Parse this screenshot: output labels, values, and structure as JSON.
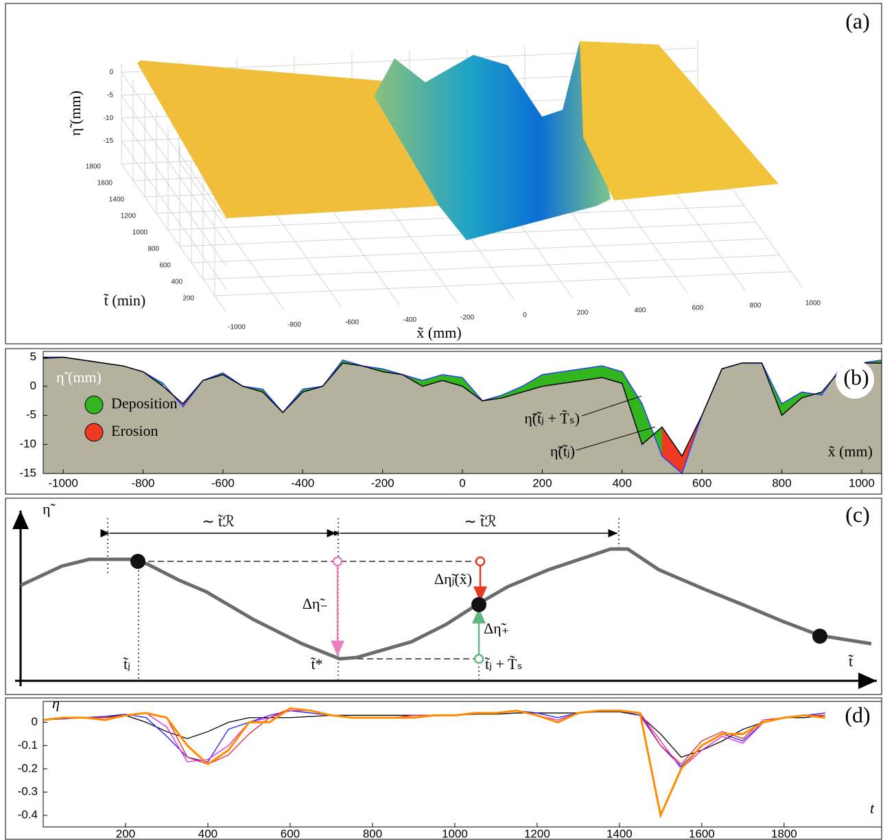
{
  "chart_data": [
    {
      "type": "surface3d",
      "panel_label": "(a)",
      "xlabel": "x̃ (mm)",
      "ylabel": "t̃ (min)",
      "zlabel": "η̃ (mm)",
      "xlim": [
        -1000,
        1000
      ],
      "ylim": [
        0,
        1800
      ],
      "zlim": [
        -20,
        2
      ],
      "xticks": [
        -1000,
        -800,
        -600,
        -400,
        -200,
        0,
        200,
        400,
        600,
        800,
        1000
      ],
      "yticks": [
        200,
        400,
        600,
        800,
        1000,
        1200,
        1400,
        1600,
        1800
      ],
      "zticks": [
        0,
        -5,
        -10,
        -15
      ]
    },
    {
      "type": "profile",
      "panel_label": "(b)",
      "xlabel": "x̃ (mm)",
      "ylabel": "η̃ (mm)",
      "xlim": [
        -1050,
        1050
      ],
      "ylim": [
        -15,
        6
      ],
      "xticks": [
        -1000,
        -800,
        -600,
        -400,
        -200,
        0,
        200,
        400,
        600,
        800,
        1000
      ],
      "yticks": [
        5,
        0,
        -5,
        -10,
        -15
      ],
      "x": [
        -1050,
        -1000,
        -950,
        -900,
        -850,
        -800,
        -750,
        -700,
        -650,
        -600,
        -550,
        -500,
        -450,
        -400,
        -350,
        -300,
        -250,
        -200,
        -150,
        -100,
        -50,
        0,
        50,
        100,
        150,
        200,
        250,
        300,
        350,
        400,
        450,
        500,
        550,
        600,
        650,
        700,
        750,
        800,
        850,
        900,
        950,
        1000,
        1050
      ],
      "series": [
        {
          "name": "η̃(t̃ⱼ)",
          "color": "#000000",
          "values": [
            4.8,
            5,
            4.5,
            4,
            3.5,
            2.5,
            0,
            -3,
            1,
            2,
            0,
            -1,
            -4.5,
            -1,
            0,
            4,
            3.5,
            2.5,
            2,
            0,
            1,
            0,
            -2.5,
            -2,
            -1,
            0,
            0.5,
            1,
            1.5,
            0.5,
            -10,
            -7,
            -12,
            -5,
            3,
            4,
            4,
            -5,
            -2,
            -1,
            3,
            4,
            4
          ]
        },
        {
          "name": "η̃(t̃ⱼ + T̃ₛ)",
          "color": "#1f3fff",
          "values": [
            5,
            5,
            4.5,
            4,
            3.5,
            2.5,
            0.5,
            -3.5,
            1,
            2.3,
            0,
            -0.5,
            -4.5,
            -0.5,
            0,
            4.5,
            3.5,
            3,
            2,
            1,
            2,
            1.5,
            -2.5,
            -1.5,
            0,
            2,
            2.5,
            3,
            3.5,
            2.5,
            -3,
            -12,
            -15,
            -5,
            3,
            4,
            4,
            -3,
            -1,
            -1.5,
            3.5,
            4,
            4.5
          ]
        }
      ],
      "legend": [
        {
          "label": "Deposition",
          "color": "#33b51f"
        },
        {
          "label": "Erosion",
          "color": "#ee3a22"
        }
      ],
      "fill_color": "#b5b19f"
    },
    {
      "type": "schematic",
      "panel_label": "(c)",
      "labels": {
        "eta": "η̃",
        "t": "t̃",
        "span_left": "∼ t̃ℛ",
        "span_right": "∼ t̃ℛ",
        "delta_minus": "Δη̃₋",
        "delta_plus": "Δη̃₊",
        "delta_j": "Δη̃ⱼ(x̃)",
        "t_j": "t̃ⱼ",
        "t_star": "t̃*",
        "t_j_Ts": "t̃ⱼ + T̃ₛ"
      }
    },
    {
      "type": "line",
      "panel_label": "(d)",
      "xlabel": "t",
      "ylabel": "η",
      "xlim": [
        0,
        2037
      ],
      "ylim": [
        -0.45,
        0.09
      ],
      "xticks": [
        200,
        400,
        600,
        800,
        1000,
        1200,
        1400,
        1600,
        1800
      ],
      "yticks": [
        0,
        -0.1,
        -0.2,
        -0.3,
        -0.4
      ],
      "x": [
        0,
        50,
        100,
        150,
        200,
        250,
        300,
        350,
        400,
        450,
        500,
        550,
        600,
        650,
        700,
        750,
        800,
        850,
        900,
        950,
        1000,
        1050,
        1100,
        1150,
        1200,
        1250,
        1300,
        1350,
        1400,
        1450,
        1500,
        1550,
        1600,
        1650,
        1700,
        1750,
        1800,
        1850,
        1900
      ],
      "series": [
        {
          "color": "#000000",
          "values": [
            0.01,
            0.015,
            0.02,
            0.025,
            0.03,
            0,
            -0.04,
            -0.07,
            -0.04,
            0,
            0.02,
            0.02,
            0.02,
            0.025,
            0.03,
            0.03,
            0.03,
            0.03,
            0.03,
            0.03,
            0.03,
            0.035,
            0.035,
            0.04,
            0.04,
            0.04,
            0.04,
            0.045,
            0.045,
            0.03,
            -0.05,
            -0.15,
            -0.12,
            -0.08,
            -0.03,
            0,
            0.02,
            0.02,
            0.03
          ]
        },
        {
          "color": "#1a1aff",
          "values": [
            0.01,
            0.015,
            0.02,
            0.025,
            0.035,
            0.02,
            -0.06,
            -0.15,
            -0.17,
            -0.03,
            0,
            0.03,
            0.05,
            0.04,
            0.03,
            0.02,
            0.02,
            0.02,
            0.03,
            0.03,
            0.03,
            0.04,
            0.04,
            0.05,
            0.04,
            0.02,
            0.04,
            0.05,
            0.05,
            0.03,
            -0.1,
            -0.19,
            -0.1,
            -0.05,
            -0.08,
            0,
            0.02,
            0.03,
            0.04
          ]
        },
        {
          "color": "#e020e0",
          "values": [
            0.01,
            0.02,
            0.02,
            0.02,
            0.03,
            0.04,
            -0.02,
            -0.17,
            -0.16,
            -0.1,
            0,
            0.02,
            0.05,
            0.05,
            0.03,
            0.02,
            0.02,
            0.02,
            0.03,
            0.03,
            0.03,
            0.04,
            0.04,
            0.05,
            0.03,
            0.01,
            0.04,
            0.05,
            0.05,
            0.04,
            -0.08,
            -0.2,
            -0.12,
            -0.06,
            -0.09,
            0,
            0.02,
            0.03,
            0.03
          ]
        },
        {
          "color": "#ee2222",
          "values": [
            0.01,
            0.02,
            0.02,
            0.02,
            0.03,
            0.04,
            0.02,
            -0.15,
            -0.18,
            -0.14,
            -0.05,
            0.02,
            0.06,
            0.05,
            0.03,
            0.02,
            0.02,
            0.02,
            0.03,
            0.03,
            0.03,
            0.04,
            0.04,
            0.05,
            0.03,
            0,
            0.04,
            0.05,
            0.05,
            0.04,
            -0.1,
            -0.18,
            -0.08,
            -0.04,
            -0.07,
            0.01,
            0.02,
            0.03,
            0.03
          ]
        },
        {
          "color": "#ff8c00",
          "values": [
            0.01,
            0.02,
            0.02,
            0.01,
            0.03,
            0.04,
            0.02,
            -0.1,
            -0.18,
            -0.12,
            0,
            0,
            0.06,
            0.05,
            0.03,
            0.02,
            0.02,
            0.02,
            0.02,
            0.03,
            0.03,
            0.04,
            0.04,
            0.05,
            0.03,
            0,
            0.04,
            0.05,
            0.05,
            0.04,
            -0.4,
            -0.2,
            -0.1,
            -0.05,
            -0.05,
            0,
            0.02,
            0.03,
            0.02
          ]
        }
      ]
    }
  ]
}
